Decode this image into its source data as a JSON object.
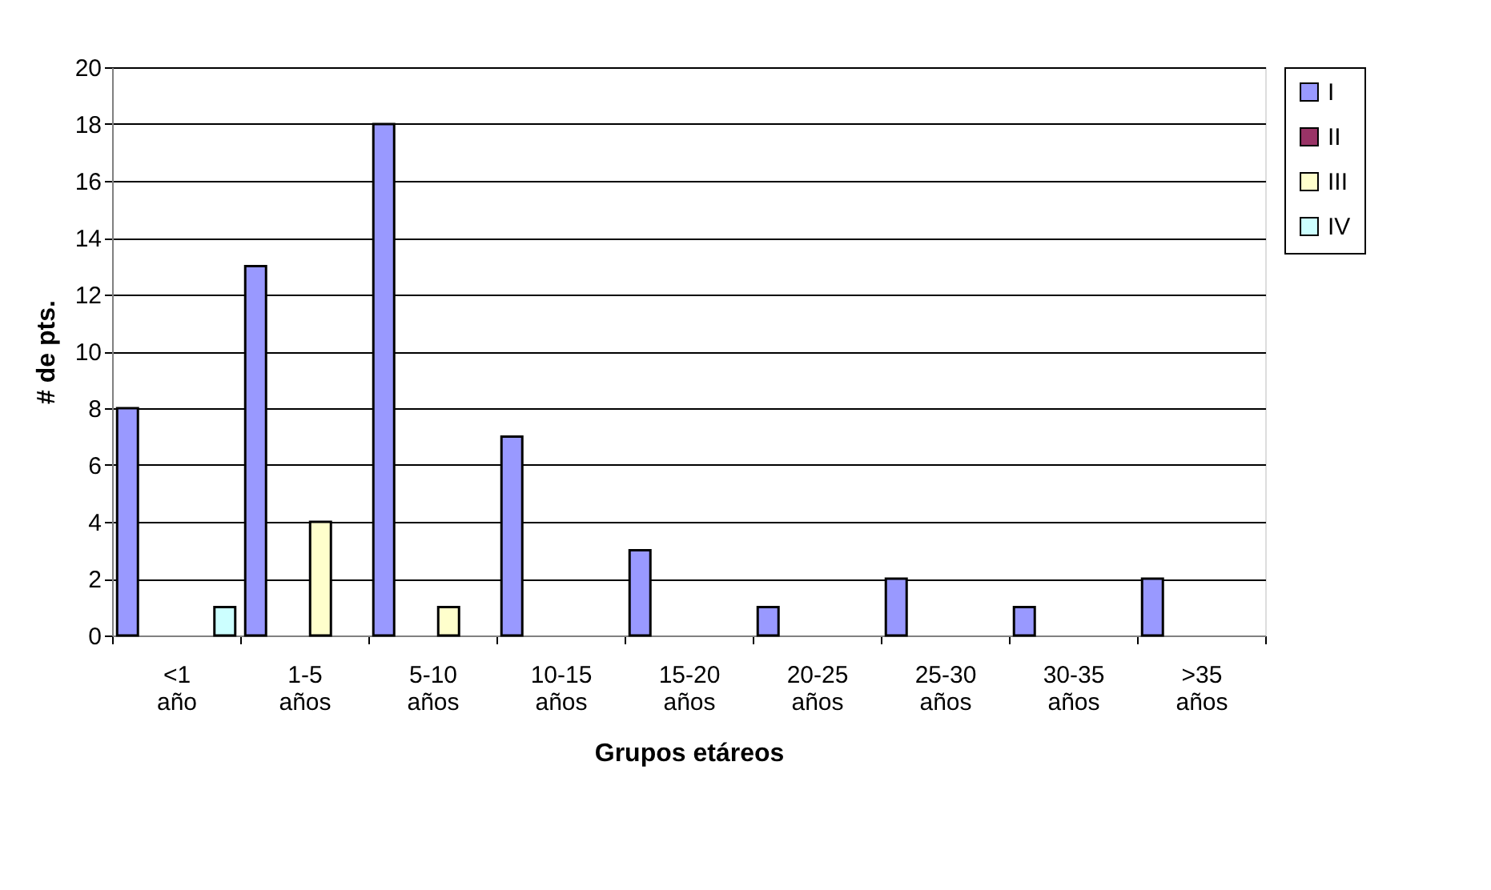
{
  "chart_data": {
    "type": "bar",
    "xlabel": "Grupos etáreos",
    "ylabel": "# de pts.",
    "categories": [
      "<1 año",
      "1-5 años",
      "5-10 años",
      "10-15 años",
      "15-20 años",
      "20-25 años",
      "25-30 años",
      "30-35 años",
      ">35 años"
    ],
    "series": [
      {
        "name": "I",
        "color": "#9999ff",
        "values": [
          8,
          13,
          18,
          7,
          3,
          1,
          2,
          1,
          2
        ]
      },
      {
        "name": "II",
        "color": "#993366",
        "values": [
          null,
          null,
          null,
          null,
          null,
          null,
          null,
          null,
          null
        ]
      },
      {
        "name": "III",
        "color": "#ffffcc",
        "values": [
          null,
          4,
          1,
          null,
          null,
          null,
          null,
          null,
          null
        ]
      },
      {
        "name": "IV",
        "color": "#ccffff",
        "values": [
          1,
          null,
          null,
          null,
          null,
          null,
          null,
          null,
          null
        ]
      }
    ],
    "ylim": [
      0,
      20
    ],
    "yticks": [
      0,
      2,
      4,
      6,
      8,
      10,
      12,
      14,
      16,
      18,
      20
    ],
    "grid": "y",
    "legend": "right"
  }
}
